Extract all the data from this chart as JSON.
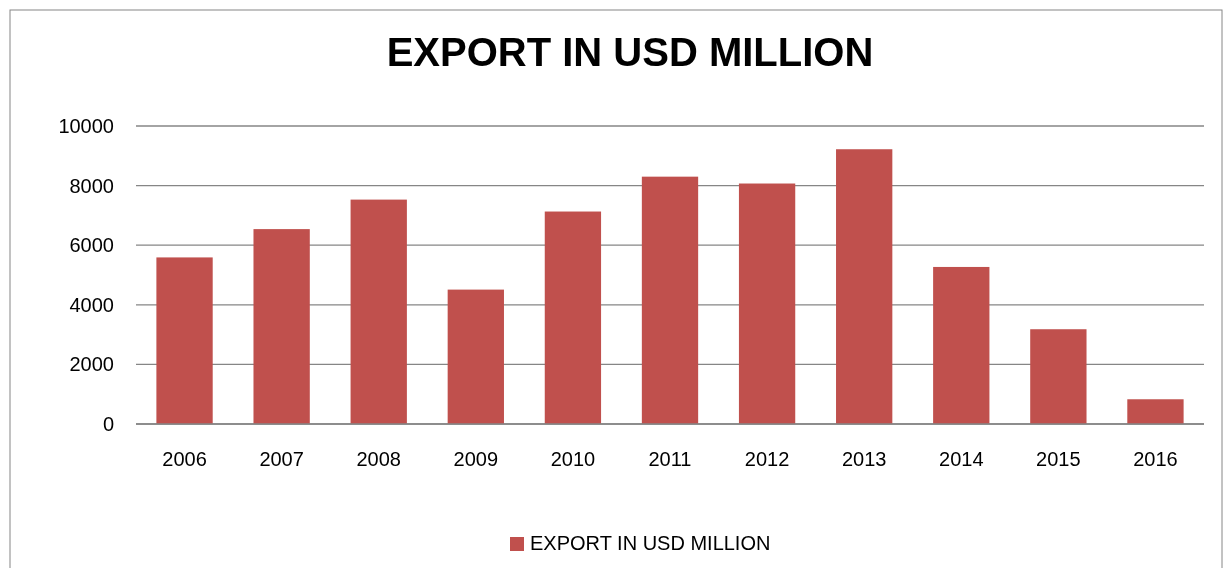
{
  "chart_data": {
    "type": "bar",
    "title": "EXPORT IN USD MILLION",
    "categories": [
      "2006",
      "2007",
      "2008",
      "2009",
      "2010",
      "2011",
      "2012",
      "2013",
      "2014",
      "2015",
      "2016"
    ],
    "series": [
      {
        "name": "EXPORT IN USD MILLION",
        "color": "#c0504d",
        "values": [
          5590,
          6540,
          7530,
          4510,
          7130,
          8300,
          8070,
          9220,
          5270,
          3180,
          830
        ]
      }
    ],
    "ylim": [
      0,
      10000
    ],
    "yticks": [
      0,
      2000,
      4000,
      6000,
      8000,
      10000
    ],
    "grid": "y",
    "legend": "bottom"
  }
}
